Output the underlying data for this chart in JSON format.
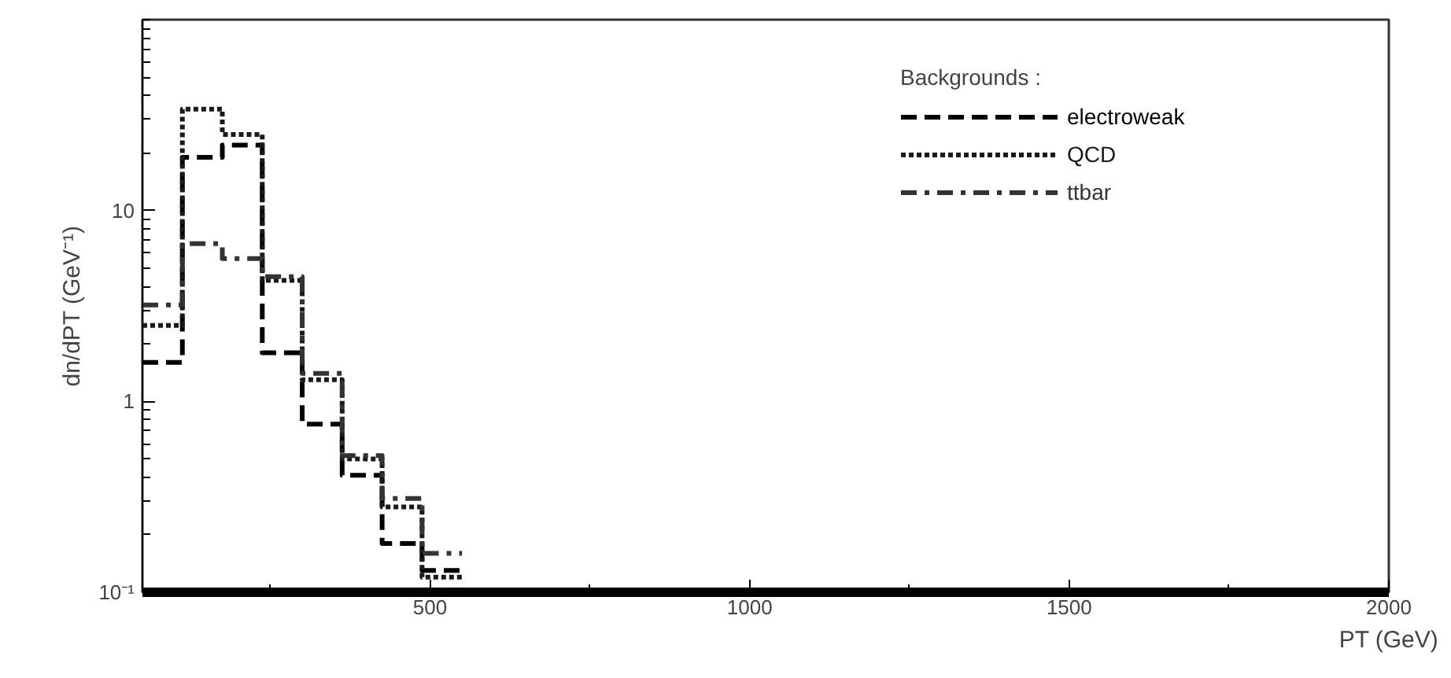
{
  "chart_data": {
    "type": "histogram",
    "xlabel": "PT (GeV)",
    "ylabel": "dn/dPT (GeV⁻¹)",
    "legend_title": "Backgrounds :",
    "bins": [
      50,
      112.5,
      175,
      237.5,
      300,
      362.5,
      425,
      487.5,
      550
    ],
    "series": [
      {
        "name": "electroweak",
        "color": "#000000",
        "line_style": "dashed",
        "values": [
          1.6,
          19,
          22,
          1.8,
          0.76,
          0.41,
          0.18,
          0.13
        ]
      },
      {
        "name": "QCD",
        "color": "#1a1a1a",
        "line_style": "dotted",
        "values": [
          2.5,
          34,
          25,
          4.3,
          1.3,
          0.5,
          0.28,
          0.12
        ]
      },
      {
        "name": "ttbar",
        "color": "#333333",
        "line_style": "dashdot",
        "values": [
          3.2,
          6.7,
          5.6,
          4.5,
          1.4,
          0.52,
          0.31,
          0.16
        ]
      }
    ],
    "xlim": [
      50,
      2000
    ],
    "xticks": [
      500,
      1000,
      1500,
      2000
    ],
    "ylim": [
      0.1,
      100
    ],
    "yticks": [
      {
        "value": 0.1,
        "label": "10⁻¹"
      },
      1,
      10
    ],
    "log": "y",
    "grid": false,
    "legend": "top right"
  }
}
